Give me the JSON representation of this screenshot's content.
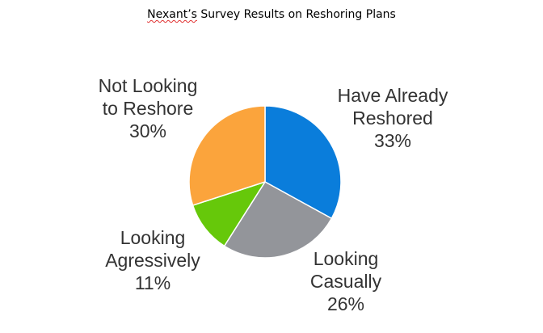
{
  "chart_data": {
    "type": "pie",
    "title": {
      "brand": "Nexant’s",
      "rest": " Survey Results on Reshoring Plans"
    },
    "slices": [
      {
        "line1": "Have Already",
        "line2": "Reshored",
        "pct_label": "33%",
        "value": 33,
        "color": "#0a7ddb"
      },
      {
        "line1": "Looking",
        "line2": "Casually",
        "pct_label": "26%",
        "value": 26,
        "color": "#93959a"
      },
      {
        "line1": "Looking",
        "line2": "Agressively",
        "pct_label": "11%",
        "value": 11,
        "color": "#66c80a"
      },
      {
        "line1": "Not Looking",
        "line2": "to Reshore",
        "pct_label": "30%",
        "value": 30,
        "color": "#fba43c"
      }
    ],
    "start": "top",
    "direction": "clockwise",
    "legend": "none"
  }
}
